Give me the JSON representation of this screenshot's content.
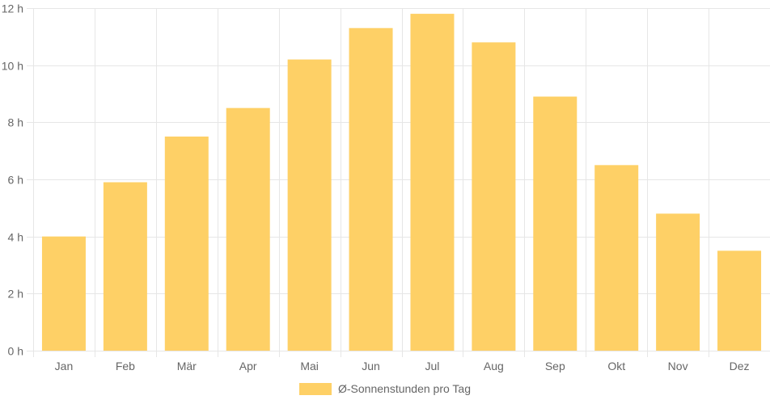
{
  "chart_data": {
    "type": "bar",
    "categories": [
      "Jan",
      "Feb",
      "Mär",
      "Apr",
      "Mai",
      "Jun",
      "Jul",
      "Aug",
      "Sep",
      "Okt",
      "Nov",
      "Dez"
    ],
    "series": [
      {
        "name": "Ø-Sonnenstunden pro Tag",
        "values": [
          4.0,
          5.9,
          7.5,
          8.5,
          10.2,
          11.3,
          11.8,
          10.8,
          8.9,
          6.5,
          4.8,
          3.5
        ],
        "color": "#fed066"
      }
    ],
    "y_ticks": [
      "0 h",
      "2 h",
      "4 h",
      "6 h",
      "8 h",
      "10 h",
      "12 h"
    ],
    "ylim": [
      0,
      12
    ],
    "grid": true,
    "legend_position": "bottom"
  },
  "colors": {
    "grid": "#e6e6e6",
    "axis_text": "#666666"
  }
}
